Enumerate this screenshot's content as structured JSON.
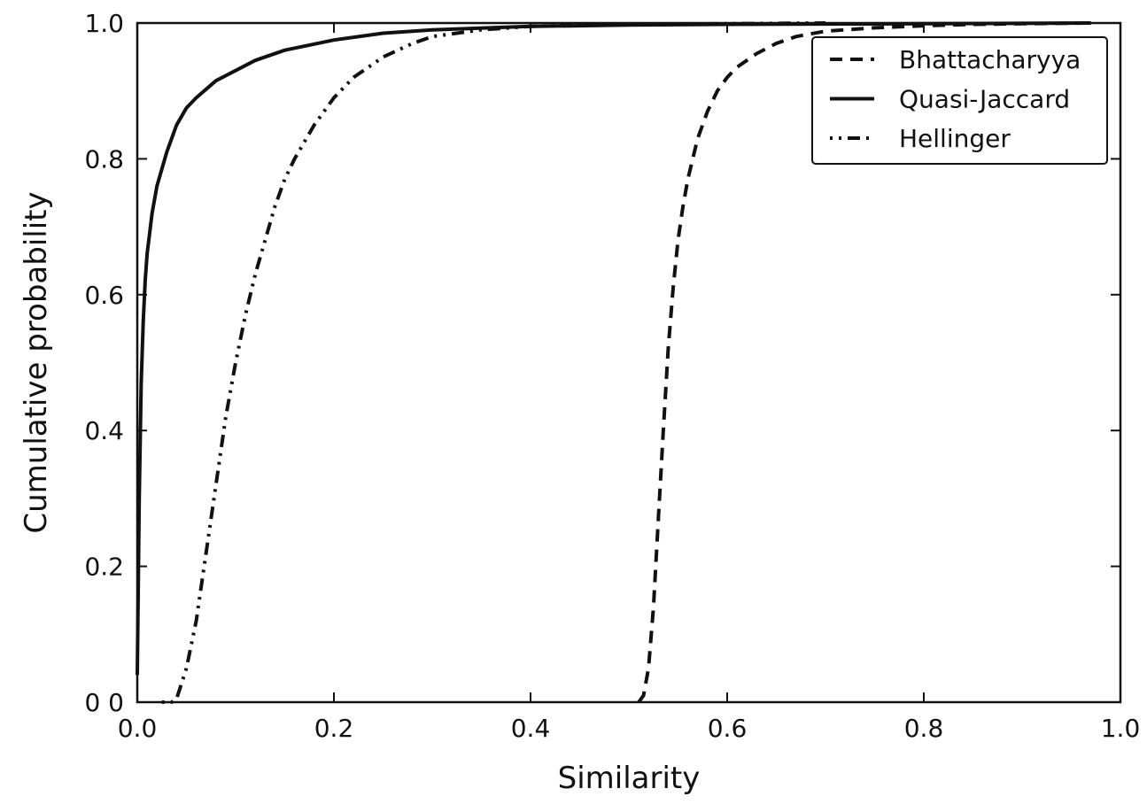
{
  "chart_data": {
    "type": "line",
    "title": "",
    "xlabel": "Similarity",
    "ylabel": "Cumulative probability",
    "xlim": [
      0.0,
      1.0
    ],
    "ylim": [
      0.0,
      1.0
    ],
    "xticks": [
      "0.0",
      "0.2",
      "0.4",
      "0.6",
      "0.8",
      "1.0"
    ],
    "yticks": [
      "0 0",
      "0.2",
      "0.4",
      "0.6",
      "0.8",
      "1.0"
    ],
    "grid": false,
    "legend_position": "top-right",
    "series": [
      {
        "name": "Bhattacharyya",
        "style": "dashed",
        "color": "#111111",
        "x": [
          0.51,
          0.515,
          0.52,
          0.525,
          0.53,
          0.535,
          0.54,
          0.545,
          0.55,
          0.555,
          0.56,
          0.565,
          0.57,
          0.58,
          0.59,
          0.6,
          0.61,
          0.63,
          0.65,
          0.67,
          0.7,
          0.75,
          0.8,
          0.85,
          0.9,
          0.97
        ],
        "y": [
          0.0,
          0.01,
          0.05,
          0.14,
          0.27,
          0.4,
          0.52,
          0.61,
          0.68,
          0.73,
          0.77,
          0.8,
          0.83,
          0.87,
          0.9,
          0.92,
          0.935,
          0.955,
          0.97,
          0.98,
          0.988,
          0.993,
          0.996,
          0.998,
          0.999,
          1.0
        ]
      },
      {
        "name": "Quasi-Jaccard",
        "style": "solid",
        "color": "#111111",
        "x": [
          0.0,
          0.002,
          0.004,
          0.006,
          0.008,
          0.01,
          0.015,
          0.02,
          0.03,
          0.04,
          0.05,
          0.06,
          0.08,
          0.1,
          0.12,
          0.15,
          0.2,
          0.25,
          0.3,
          0.4,
          0.5,
          0.6,
          0.8,
          0.97
        ],
        "y": [
          0.04,
          0.3,
          0.47,
          0.56,
          0.62,
          0.66,
          0.72,
          0.76,
          0.81,
          0.85,
          0.875,
          0.89,
          0.915,
          0.93,
          0.945,
          0.96,
          0.975,
          0.985,
          0.99,
          0.995,
          0.997,
          0.998,
          0.999,
          1.0
        ]
      },
      {
        "name": "Hellinger",
        "style": "dashdot",
        "color": "#111111",
        "x": [
          0.025,
          0.035,
          0.04,
          0.05,
          0.06,
          0.07,
          0.08,
          0.09,
          0.1,
          0.11,
          0.12,
          0.13,
          0.14,
          0.15,
          0.16,
          0.18,
          0.2,
          0.22,
          0.25,
          0.28,
          0.3,
          0.35,
          0.4,
          0.45,
          0.5,
          0.6,
          0.7
        ],
        "y": [
          0.0,
          0.0,
          0.005,
          0.05,
          0.12,
          0.22,
          0.32,
          0.42,
          0.5,
          0.57,
          0.63,
          0.68,
          0.73,
          0.77,
          0.8,
          0.85,
          0.89,
          0.92,
          0.95,
          0.97,
          0.98,
          0.99,
          0.995,
          0.997,
          0.998,
          0.999,
          1.0
        ]
      }
    ]
  }
}
